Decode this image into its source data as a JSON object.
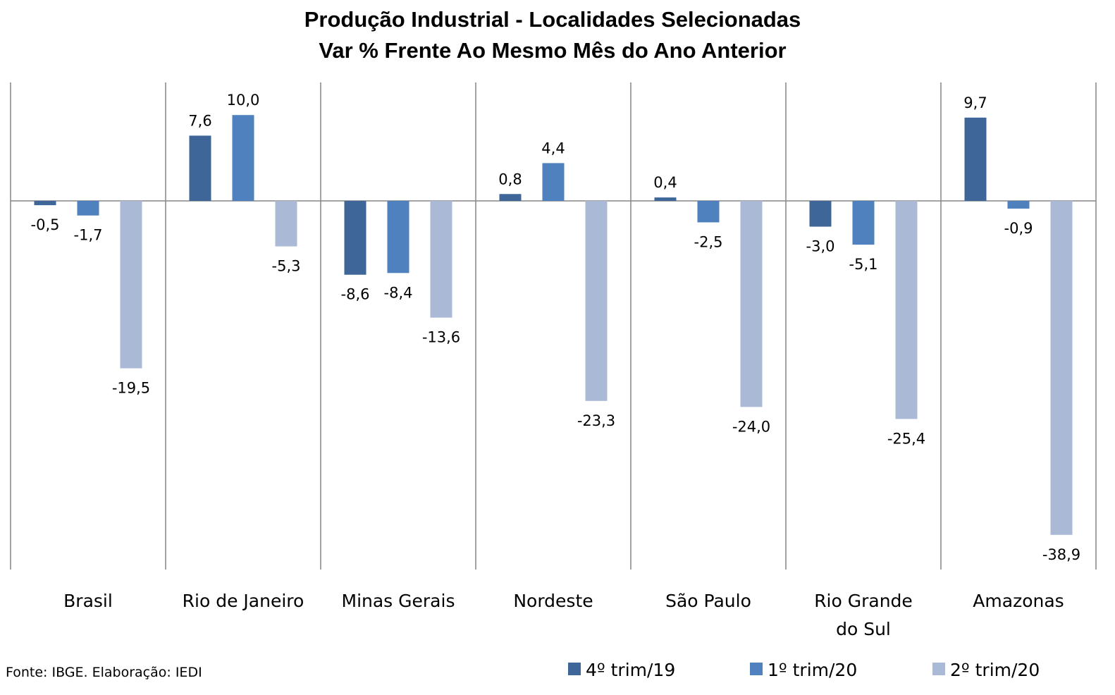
{
  "chart_data": {
    "type": "bar",
    "title": [
      "Produção Industrial - Localidades Selecionadas",
      "Var % Frente Ao Mesmo Mês do Ano Anterior"
    ],
    "categories": [
      [
        "Brasil"
      ],
      [
        "Rio de Janeiro"
      ],
      [
        "Minas Gerais"
      ],
      [
        "Nordeste"
      ],
      [
        "São Paulo"
      ],
      [
        "Rio Grande",
        "do Sul"
      ],
      [
        "Amazonas"
      ]
    ],
    "series": [
      {
        "name": "4º trim/19",
        "color": "#3E6699",
        "values": [
          -0.5,
          7.6,
          -8.6,
          0.8,
          0.4,
          -3.0,
          9.7
        ],
        "labels": [
          "-0,5",
          "7,6",
          "-8,6",
          "0,8",
          "0,4",
          "-3,0",
          "9,7"
        ]
      },
      {
        "name": "1º trim/20",
        "color": "#4E81BD",
        "values": [
          -1.7,
          10.0,
          -8.4,
          4.4,
          -2.5,
          -5.1,
          -0.9
        ],
        "labels": [
          "-1,7",
          "10,0",
          "-8,4",
          "4,4",
          "-2,5",
          "-5,1",
          "-0,9"
        ]
      },
      {
        "name": "2º trim/20",
        "color": "#AAB9D6",
        "values": [
          -19.5,
          -5.3,
          -13.6,
          -23.3,
          -24.0,
          -25.4,
          -38.9
        ],
        "labels": [
          "-19,5",
          "-5,3",
          "-13,6",
          "-23,3",
          "-24,0",
          "-25,4",
          "-38,9"
        ]
      }
    ],
    "ylim": [
      -43.0,
      14.0
    ],
    "grid": false,
    "legend_position": "bottom-right",
    "source": "Fonte: IBGE. Elaboração: IEDI"
  }
}
